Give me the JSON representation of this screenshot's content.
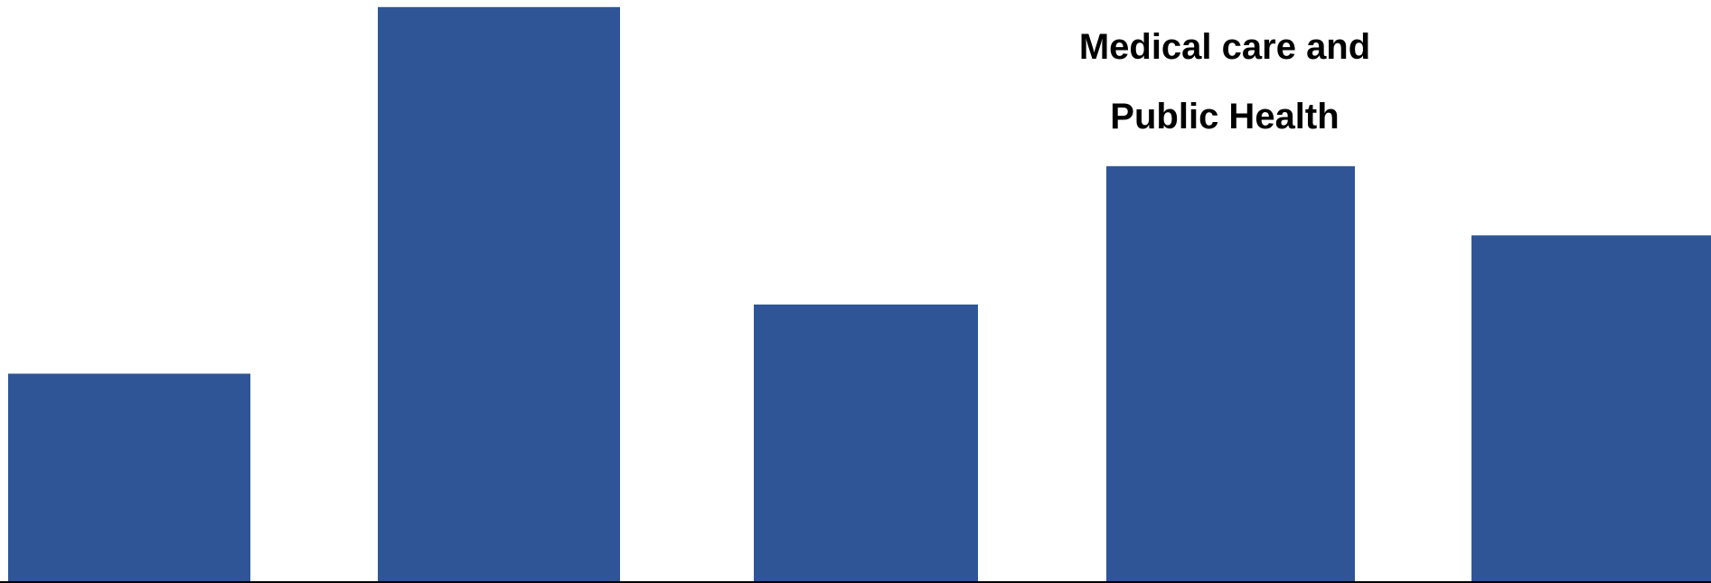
{
  "chart_data": {
    "type": "bar",
    "values": [
      30,
      83,
      40,
      60,
      50
    ],
    "ylim": [
      0,
      83.5
    ],
    "grid": false,
    "colors": {
      "bar": "#2f5597",
      "axis": "#000000"
    },
    "annotation": {
      "bar_index": 3,
      "lines": [
        "Medical care and",
        "Public Health"
      ]
    }
  }
}
